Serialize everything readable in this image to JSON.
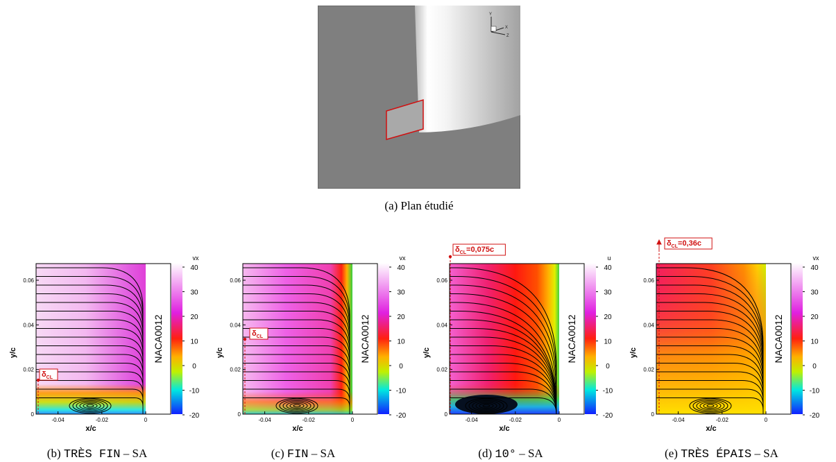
{
  "figure_a": {
    "caption": {
      "label": "(a)",
      "text": "Plan étudié"
    },
    "triad": {
      "y": "Y",
      "x": "X",
      "z": "Z"
    }
  },
  "panels": [
    {
      "caption": {
        "label": "(b)",
        "code": "TRÈS FIN",
        "rest": "– SA"
      },
      "colorbar": {
        "title": "vx",
        "ticks": [
          40,
          30,
          20,
          10,
          0,
          -10,
          -20
        ]
      },
      "xticks": [
        -0.04,
        -0.02,
        0
      ],
      "yticks": [
        0,
        0.02,
        0.04,
        0.06
      ],
      "x_label": "x/c",
      "y_label": "y/c",
      "wall_label": "NACA0012",
      "delta": {
        "symbol": "δ",
        "sub": "CL"
      }
    },
    {
      "caption": {
        "label": "(c)",
        "code": "FIN",
        "rest": "– SA"
      },
      "colorbar": {
        "title": "vx",
        "ticks": [
          40,
          30,
          20,
          10,
          0,
          -10,
          -20
        ]
      },
      "xticks": [
        -0.04,
        -0.02,
        0
      ],
      "yticks": [
        0,
        0.02,
        0.04,
        0.06
      ],
      "x_label": "x/c",
      "y_label": "y/c",
      "wall_label": "NACA0012",
      "delta": {
        "symbol": "δ",
        "sub": "CL"
      }
    },
    {
      "caption": {
        "label": "(d)",
        "code": "10°",
        "rest": "– SA"
      },
      "colorbar": {
        "title": "u",
        "ticks": [
          40,
          30,
          20,
          10,
          0,
          -10,
          -20
        ]
      },
      "xticks": [
        -0.04,
        -0.02,
        0
      ],
      "yticks": [
        0,
        0.02,
        0.04,
        0.06
      ],
      "x_label": "x/c",
      "y_label": "y/c",
      "wall_label": "NACA0012",
      "delta": {
        "symbol": "δ",
        "sub": "CL",
        "value": "=0,075c"
      }
    },
    {
      "caption": {
        "label": "(e)",
        "code": "TRÈS ÉPAIS",
        "rest": "– SA"
      },
      "colorbar": {
        "title": "vx",
        "ticks": [
          40,
          30,
          20,
          10,
          0,
          -10,
          -20
        ]
      },
      "xticks": [
        -0.04,
        -0.02,
        0
      ],
      "yticks": [
        0,
        0.02,
        0.04,
        0.06
      ],
      "x_label": "x/c",
      "y_label": "y/c",
      "wall_label": "NACA0012",
      "delta": {
        "symbol": "δ",
        "sub": "CL",
        "value": "=0,36c"
      }
    }
  ]
}
